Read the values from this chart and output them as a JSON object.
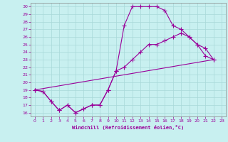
{
  "xlabel": "Windchill (Refroidissement éolien,°C)",
  "bg_color": "#c8f0f0",
  "line_color": "#990099",
  "grid_color": "#a8d8d8",
  "xlim": [
    -0.5,
    23.5
  ],
  "ylim": [
    15.5,
    30.5
  ],
  "xticks": [
    0,
    1,
    2,
    3,
    4,
    5,
    6,
    7,
    8,
    9,
    10,
    11,
    12,
    13,
    14,
    15,
    16,
    17,
    18,
    19,
    20,
    21,
    22,
    23
  ],
  "yticks": [
    16,
    17,
    18,
    19,
    20,
    21,
    22,
    23,
    24,
    25,
    26,
    27,
    28,
    29,
    30
  ],
  "curve1_x": [
    0,
    1,
    2,
    3,
    4,
    5,
    6,
    7,
    8,
    9,
    10,
    11,
    12,
    13,
    14,
    15,
    16,
    17,
    18,
    19,
    20,
    21,
    22
  ],
  "curve1_y": [
    19,
    18.8,
    17.5,
    16.3,
    17.0,
    16.0,
    16.5,
    17.0,
    17.0,
    19.0,
    21.5,
    27.5,
    30.0,
    30.0,
    30.0,
    30.0,
    29.5,
    27.5,
    27.0,
    26.0,
    25.0,
    24.5,
    23.0
  ],
  "curve2_x": [
    0,
    1,
    2,
    3,
    4,
    5,
    6,
    7,
    8,
    9,
    10,
    11,
    12,
    13,
    14,
    15,
    16,
    17,
    18,
    19,
    20,
    21,
    22
  ],
  "curve2_y": [
    19,
    18.8,
    17.5,
    16.3,
    17.0,
    16.0,
    16.5,
    17.0,
    17.0,
    19.0,
    21.5,
    22.0,
    23.0,
    24.0,
    25.0,
    25.0,
    25.5,
    26.0,
    26.5,
    26.0,
    25.0,
    23.5,
    23.0
  ],
  "curve3_x": [
    0,
    22
  ],
  "curve3_y": [
    19.0,
    23.0
  ],
  "marker_size": 2.5,
  "linewidth": 0.8
}
